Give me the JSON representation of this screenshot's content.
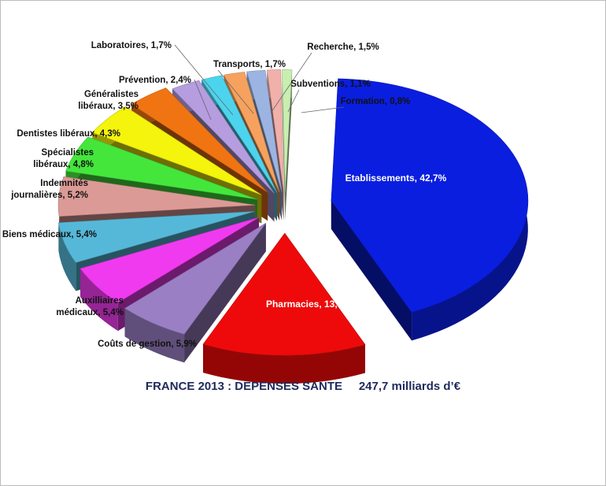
{
  "chart_data": {
    "type": "pie",
    "title": "FRANCE 2013 : DEPENSES SANTE     247,7 milliards d’€",
    "unit": "%",
    "slices": [
      {
        "label": "Etablissements",
        "value": 42.7,
        "value_text": "42,7%",
        "color": "#0a1ee0"
      },
      {
        "label": "Pharmacies",
        "value": 13.5,
        "value_text": "13,5%",
        "color": "#ee0a0a"
      },
      {
        "label": "Coûts de gestion",
        "value": 5.9,
        "value_text": "5,9%",
        "color": "#9b7fc4"
      },
      {
        "label": "Auxilliaires médicaux",
        "value": 5.4,
        "value_text": "5,4%",
        "color": "#f03af0"
      },
      {
        "label": "Biens médicaux",
        "value": 5.4,
        "value_text": "5,4%",
        "color": "#56b8d8"
      },
      {
        "label": "Indemnités journalières",
        "value": 5.2,
        "value_text": "5,2%",
        "color": "#dc9a96"
      },
      {
        "label": "Spécialistes libéraux",
        "value": 4.8,
        "value_text": "4,8%",
        "color": "#44e63c"
      },
      {
        "label": "Dentistes libéraux",
        "value": 4.3,
        "value_text": "4,3%",
        "color": "#f4f40c"
      },
      {
        "label": "Généralistes libéraux",
        "value": 3.5,
        "value_text": "3,5%",
        "color": "#f07412"
      },
      {
        "label": "Prévention",
        "value": 2.4,
        "value_text": "2,4%",
        "color": "#b59de0"
      },
      {
        "label": "Laboratoires",
        "value": 1.7,
        "value_text": "1,7%",
        "color": "#4cd4ee"
      },
      {
        "label": "Transports",
        "value": 1.7,
        "value_text": "1,7%",
        "color": "#f6a25e"
      },
      {
        "label": "Recherche",
        "value": 1.5,
        "value_text": "1,5%",
        "color": "#9cb4e2"
      },
      {
        "label": "Subventions",
        "value": 1.1,
        "value_text": "1,1%",
        "color": "#f2b0aa"
      },
      {
        "label": "Formation",
        "value": 0.8,
        "value_text": "0,8%",
        "color": "#c8eeb0"
      }
    ],
    "legend": "none",
    "style": "3d-exploded"
  }
}
